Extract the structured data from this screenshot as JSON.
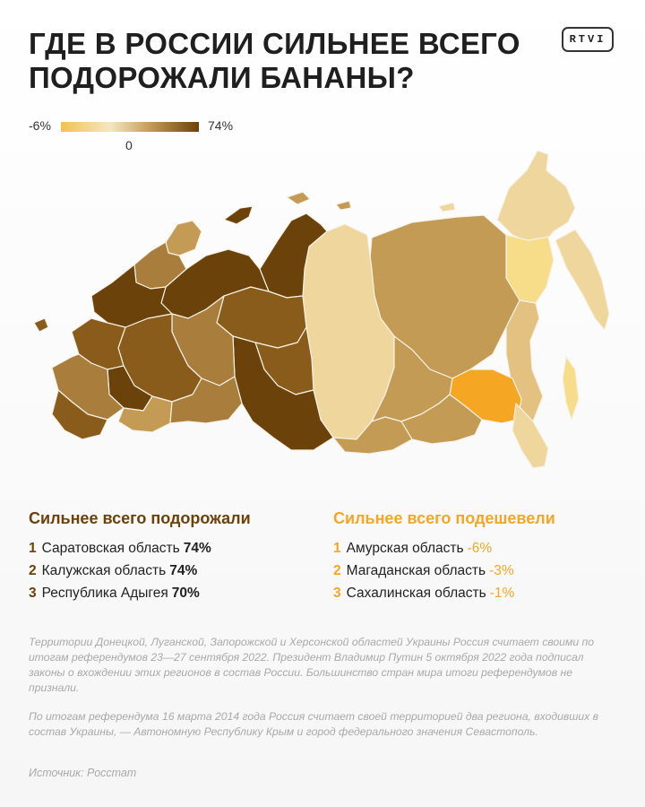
{
  "title": "ГДЕ В РОССИИ СИЛЬНЕЕ ВСЕГО\nПОДОРОЖАЛИ БАНАНЫ?",
  "logo": "RTVI",
  "legend": {
    "min": "-6%",
    "zero": "0",
    "max": "74%",
    "colors": [
      "#f2c24f",
      "#f4e7c2",
      "#c39b55",
      "#6b4209"
    ]
  },
  "map": {
    "colors": {
      "darkest": "#6b4209",
      "dark": "#8a5c1c",
      "medium": "#a97d3c",
      "mid": "#c39b55",
      "light": "#e3c281",
      "pale": "#efd69c",
      "orange": "#f5a623"
    }
  },
  "most_expensive": {
    "heading": "Сильнее всего подорожали",
    "items": [
      {
        "rank": "1",
        "name": "Саратовская область",
        "value": "74%"
      },
      {
        "rank": "2",
        "name": "Калужская область",
        "value": "74%"
      },
      {
        "rank": "3",
        "name": "Республика Адыгея",
        "value": "70%"
      }
    ]
  },
  "cheapest": {
    "heading": "Сильнее всего подешевели",
    "items": [
      {
        "rank": "1",
        "name": "Амурская область",
        "value": "-6%"
      },
      {
        "rank": "2",
        "name": "Магаданская область",
        "value": "-3%"
      },
      {
        "rank": "3",
        "name": "Сахалинская область",
        "value": "-1%"
      }
    ]
  },
  "notes": [
    "Территории Донецкой, Луганской, Запорожской и Херсонской областей Украины Россия считает своими по итогам референдумов 23—27 сентября 2022. Президент Владимир Путин 5 октября 2022 года подписал законы о вхождении этих регионов в состав России. Большинство стран мира итоги референдумов не признали.",
    "По итогам референдума 16 марта 2014 года Россия считает своей территорией два региона, входивших в состав Украины, — Автономную Республику Крым и город федерального значения Севастополь."
  ],
  "source": "Источник: Росстат"
}
